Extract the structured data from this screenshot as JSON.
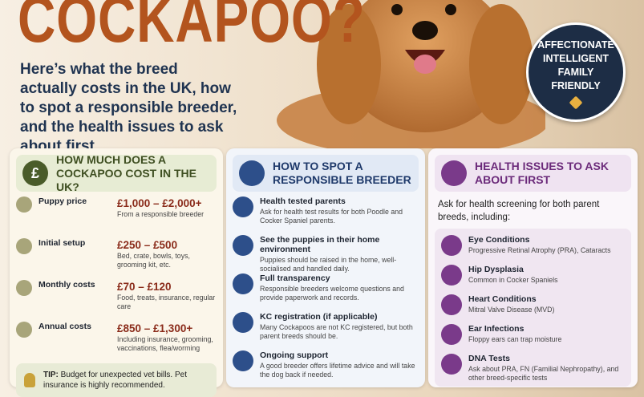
{
  "header": {
    "title": "COCKAPOO?",
    "subtitle": "Here’s what the breed actually costs in the UK, how to spot a responsible breeder, and the health issues to ask about first."
  },
  "badge": {
    "lines": [
      "AFFECTIONATE",
      "INTELLIGENT",
      "FAMILY",
      "FRIENDLY"
    ]
  },
  "panels": [
    {
      "icon": "£",
      "title": "HOW MUCH DOES A COCKAPOO COST IN THE UK?",
      "items": [
        {
          "label": "Puppy price",
          "value": "£1,000 – £2,000+",
          "note": "From a responsible breeder"
        },
        {
          "label": "Initial setup",
          "value": "£250 – £500",
          "note": "Bed, crate, bowls, toys, grooming kit, etc."
        },
        {
          "label": "Monthly costs",
          "value": "£70 – £120",
          "note": "Food, treats, insurance, regular care"
        },
        {
          "label": "Annual costs",
          "value": "£850 – £1,300+",
          "note": "Including insurance, grooming, vaccinations, flea/worming"
        }
      ],
      "tip": {
        "label": "TIP:",
        "text": "Budget for unexpected vet bills. Pet insurance is highly recommended."
      }
    },
    {
      "title": "HOW TO SPOT A RESPONSIBLE BREEDER",
      "items": [
        {
          "label": "Health tested parents",
          "note": "Ask for health test results for both Poodle and Cocker Spaniel parents."
        },
        {
          "label": "See the puppies in their home environment",
          "note": "Puppies should be raised in the home, well-socialised and handled daily."
        },
        {
          "label": "Full transparency",
          "note": "Responsible breeders welcome questions and provide paperwork and records."
        },
        {
          "label": "KC registration (if applicable)",
          "note": "Many Cockapoos are not KC registered, but both parent breeds should be."
        },
        {
          "label": "Ongoing support",
          "note": "A good breeder offers lifetime advice and will take the dog back if needed."
        }
      ]
    },
    {
      "title": "HEALTH ISSUES TO ASK ABOUT FIRST",
      "intro": "Ask for health screening for both parent breeds, including:",
      "items": [
        {
          "label": "Eye Conditions",
          "note": "Progressive Retinal Atrophy (PRA), Cataracts"
        },
        {
          "label": "Hip Dysplasia",
          "note": "Common in Cocker Spaniels"
        },
        {
          "label": "Heart Conditions",
          "note": "Mitral Valve Disease (MVD)"
        },
        {
          "label": "Ear Infections",
          "note": "Floppy ears can trap moisture"
        },
        {
          "label": "DNA Tests",
          "note": "Ask about PRA, FN (Familial Nephropathy), and other breed-specific tests"
        }
      ]
    }
  ]
}
